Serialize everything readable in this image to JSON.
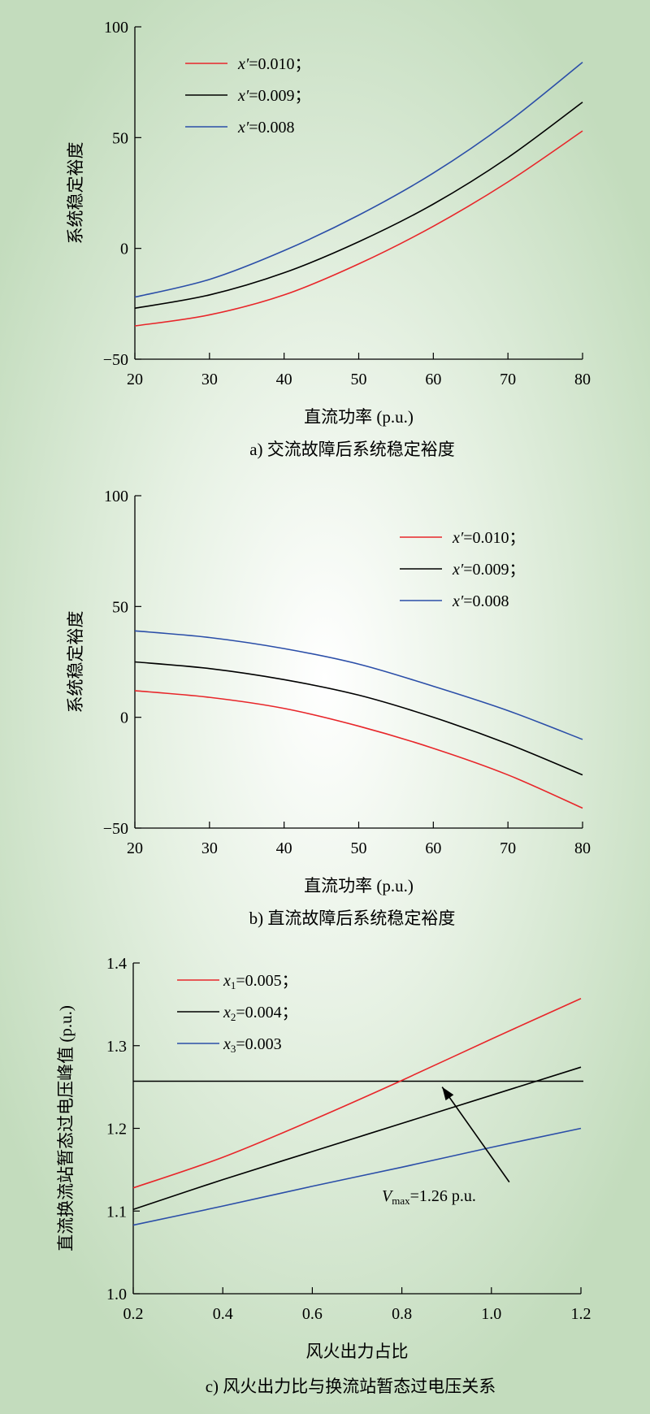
{
  "chart_data": [
    {
      "type": "line",
      "caption": "a) 交流故障后系统稳定裕度",
      "xlabel": "直流功率 (p.u.)",
      "ylabel": "系统稳定裕度",
      "xlim": [
        20,
        80
      ],
      "ylim": [
        -50,
        100
      ],
      "xticks": [
        20,
        30,
        40,
        50,
        60,
        70,
        80
      ],
      "yticks": [
        -50,
        0,
        50,
        100
      ],
      "ytick_labels": [
        "−50",
        "0",
        "50",
        "100"
      ],
      "legend_position": "top-left",
      "x": [
        20,
        30,
        40,
        50,
        60,
        70,
        80
      ],
      "series": [
        {
          "name": "x′=0.010；",
          "color": "#e8262a",
          "values": [
            -35,
            -30,
            -21,
            -7,
            10,
            30,
            53
          ]
        },
        {
          "name": "x′=0.009；",
          "color": "#000000",
          "values": [
            -27,
            -21,
            -11,
            3,
            20,
            41,
            66
          ]
        },
        {
          "name": "x′=0.008",
          "color": "#2b4ea8",
          "values": [
            -22,
            -14,
            -1,
            15,
            34,
            57,
            84
          ]
        }
      ]
    },
    {
      "type": "line",
      "caption": "b) 直流故障后系统稳定裕度",
      "xlabel": "直流功率 (p.u.)",
      "ylabel": "系统稳定裕度",
      "xlim": [
        20,
        80
      ],
      "ylim": [
        -50,
        100
      ],
      "xticks": [
        20,
        30,
        40,
        50,
        60,
        70,
        80
      ],
      "yticks": [
        -50,
        0,
        50,
        100
      ],
      "ytick_labels": [
        "−50",
        "0",
        "50",
        "100"
      ],
      "legend_position": "top-right",
      "x": [
        20,
        30,
        40,
        50,
        60,
        70,
        80
      ],
      "series": [
        {
          "name": "x′=0.010；",
          "color": "#e8262a",
          "values": [
            12,
            9,
            4,
            -4,
            -14,
            -26,
            -41
          ]
        },
        {
          "name": "x′=0.009；",
          "color": "#000000",
          "values": [
            25,
            22,
            17,
            10,
            0,
            -12,
            -26
          ]
        },
        {
          "name": "x′=0.008",
          "color": "#2b4ea8",
          "values": [
            39,
            36,
            31,
            24,
            14,
            3,
            -10
          ]
        }
      ]
    },
    {
      "type": "line",
      "caption": "c) 风火出力比与换流站暂态过电压关系",
      "xlabel": "风火出力占比",
      "ylabel": "直流换流站暂态过电压峰值 (p.u.)",
      "xlim": [
        0.2,
        1.2
      ],
      "ylim": [
        1.0,
        1.4
      ],
      "xticks": [
        0.2,
        0.4,
        0.6,
        0.8,
        1.0,
        1.2
      ],
      "yticks": [
        1.0,
        1.1,
        1.2,
        1.3,
        1.4
      ],
      "xtick_labels": [
        "0.2",
        "0.4",
        "0.6",
        "0.8",
        "1.0",
        "1.2"
      ],
      "ytick_labels": [
        "1.0",
        "1.1",
        "1.2",
        "1.3",
        "1.4"
      ],
      "legend_position": "top-left",
      "x": [
        0.2,
        0.4,
        0.6,
        0.8,
        1.0,
        1.2
      ],
      "series": [
        {
          "name": "=0.005；",
          "sym": "x",
          "sub": "1",
          "color": "#e8262a",
          "values": [
            1.128,
            1.165,
            1.21,
            1.258,
            1.308,
            1.357
          ]
        },
        {
          "name": "=0.004；",
          "sym": "x",
          "sub": "2",
          "color": "#000000",
          "values": [
            1.102,
            1.138,
            1.172,
            1.206,
            1.24,
            1.274
          ]
        },
        {
          "name": "=0.003",
          "sym": "x",
          "sub": "3",
          "color": "#2b4ea8",
          "values": [
            1.083,
            1.106,
            1.13,
            1.153,
            1.177,
            1.2
          ]
        }
      ],
      "hline": {
        "y": 1.257
      },
      "annotation": {
        "sym": "V",
        "sub": "max",
        "text": "=1.26 p.u.",
        "arrow_from": [
          1.04,
          1.135
        ],
        "arrow_to": [
          0.89,
          1.25
        ]
      }
    }
  ]
}
